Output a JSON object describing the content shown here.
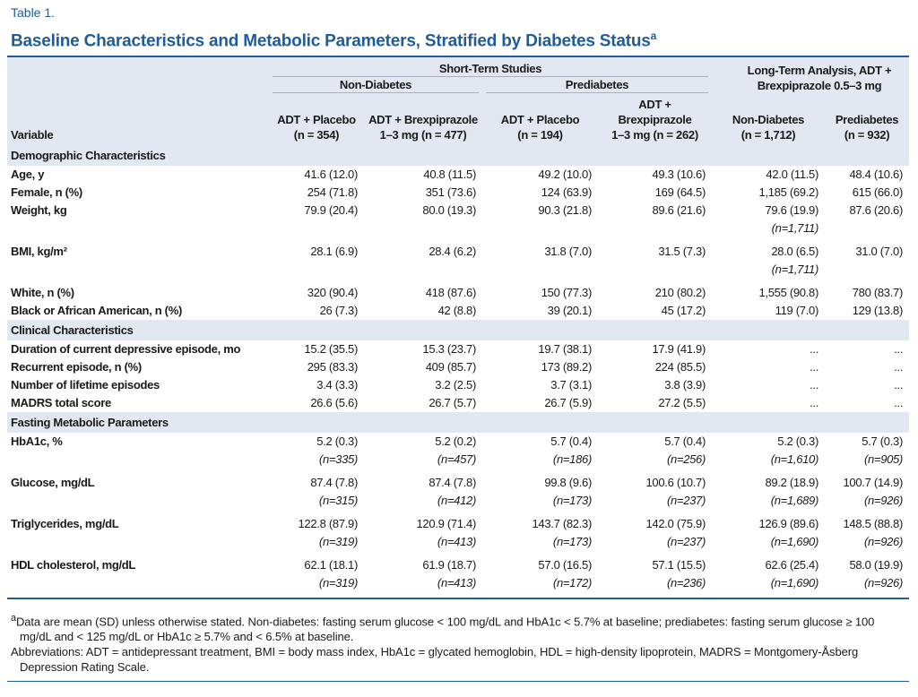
{
  "label": "Table 1.",
  "title": "Baseline Characteristics and Metabolic Parameters, Stratified by Diabetes Status",
  "title_sup": "a",
  "header": {
    "variable": "Variable",
    "short_term": "Short-Term Studies",
    "long_term": "Long-Term Analysis, ADT + Brexpiprazole 0.5–3 mg",
    "non_diabetes": "Non-Diabetes",
    "prediabetes": "Prediabetes",
    "columns": [
      {
        "label": "ADT + Placebo",
        "n": "(n = 354)"
      },
      {
        "label": "ADT + Brexpiprazole",
        "n": "1–3 mg (n = 477)"
      },
      {
        "label": "ADT + Placebo",
        "n": "(n = 194)"
      },
      {
        "label": "ADT + Brexpiprazole",
        "n": "1–3 mg (n = 262)"
      },
      {
        "label": "Non-Diabetes",
        "n": "(n = 1,712)"
      },
      {
        "label": "Prediabetes",
        "n": "(n = 932)"
      }
    ]
  },
  "sections": [
    {
      "title": "Demographic Characteristics",
      "rows": [
        {
          "label": "Age, y",
          "values": [
            "41.6 (12.0)",
            "40.8 (11.5)",
            "49.2 (10.0)",
            "49.3 (10.6)",
            "42.0 (11.5)",
            "48.4 (10.6)"
          ]
        },
        {
          "label": "Female, n (%)",
          "values": [
            "254 (71.8)",
            "351 (73.6)",
            "124 (63.9)",
            "169 (64.5)",
            "1,185 (69.2)",
            "615 (66.0)"
          ]
        },
        {
          "label": "Weight, kg",
          "values": [
            "79.9 (20.4)",
            "80.0 (19.3)",
            "90.3 (21.8)",
            "89.6 (21.6)",
            {
              "text": "79.6 (19.9)",
              "note": "(n=1,711)"
            },
            "87.6 (20.6)"
          ]
        },
        {
          "label": "BMI, kg/m²",
          "values": [
            "28.1 (6.9)",
            "28.4 (6.2)",
            "31.8 (7.0)",
            "31.5 (7.3)",
            {
              "text": "28.0 (6.5)",
              "note": "(n=1,711)"
            },
            "31.0 (7.0)"
          ]
        },
        {
          "label": "White, n (%)",
          "values": [
            "320 (90.4)",
            "418 (87.6)",
            "150 (77.3)",
            "210 (80.2)",
            "1,555 (90.8)",
            "780 (83.7)"
          ]
        },
        {
          "label": "Black or African American, n (%)",
          "values": [
            "26 (7.3)",
            "42 (8.8)",
            "39 (20.1)",
            "45 (17.2)",
            "119 (7.0)",
            "129 (13.8)"
          ]
        }
      ]
    },
    {
      "title": "Clinical Characteristics",
      "rows": [
        {
          "label": "Duration of current depressive episode, mo",
          "values": [
            "15.2 (35.5)",
            "15.3 (23.7)",
            "19.7 (38.1)",
            "17.9 (41.9)",
            "...",
            "..."
          ]
        },
        {
          "label": "Recurrent episode, n (%)",
          "values": [
            "295 (83.3)",
            "409 (85.7)",
            "173 (89.2)",
            "224 (85.5)",
            "...",
            "..."
          ]
        },
        {
          "label": "Number of lifetime episodes",
          "values": [
            "3.4 (3.3)",
            "3.2 (2.5)",
            "3.7 (3.1)",
            "3.8 (3.9)",
            "...",
            "..."
          ]
        },
        {
          "label": "MADRS total score",
          "values": [
            "26.6 (5.6)",
            "26.7 (5.7)",
            "26.7 (5.9)",
            "27.2 (5.5)",
            "...",
            "..."
          ]
        }
      ]
    },
    {
      "title": "Fasting Metabolic Parameters",
      "rows": [
        {
          "label": "HbA1c, %",
          "values": [
            {
              "text": "5.2 (0.3)",
              "note": "(n=335)"
            },
            {
              "text": "5.2 (0.2)",
              "note": "(n=457)"
            },
            {
              "text": "5.7 (0.4)",
              "note": "(n=186)"
            },
            {
              "text": "5.7 (0.4)",
              "note": "(n=256)"
            },
            {
              "text": "5.2 (0.3)",
              "note": "(n=1,610)"
            },
            {
              "text": "5.7 (0.3)",
              "note": "(n=905)"
            }
          ]
        },
        {
          "label": "Glucose, mg/dL",
          "values": [
            {
              "text": "87.4 (7.8)",
              "note": "(n=315)"
            },
            {
              "text": "87.4 (7.8)",
              "note": "(n=412)"
            },
            {
              "text": "99.8 (9.6)",
              "note": "(n=173)"
            },
            {
              "text": "100.6 (10.7)",
              "note": "(n=237)"
            },
            {
              "text": "89.2 (18.9)",
              "note": "(n=1,689)"
            },
            {
              "text": "100.7 (14.9)",
              "note": "(n=926)"
            }
          ]
        },
        {
          "label": "Triglycerides, mg/dL",
          "values": [
            {
              "text": "122.8 (87.9)",
              "note": "(n=319)"
            },
            {
              "text": "120.9 (71.4)",
              "note": "(n=413)"
            },
            {
              "text": "143.7 (82.3)",
              "note": "(n=173)"
            },
            {
              "text": "142.0 (75.9)",
              "note": "(n=237)"
            },
            {
              "text": "126.9 (89.6)",
              "note": "(n=1,690)"
            },
            {
              "text": "148.5 (88.8)",
              "note": "(n=926)"
            }
          ]
        },
        {
          "label": "HDL cholesterol, mg/dL",
          "values": [
            {
              "text": "62.1 (18.1)",
              "note": "(n=319)"
            },
            {
              "text": "61.9 (18.7)",
              "note": "(n=413)"
            },
            {
              "text": "57.0 (16.5)",
              "note": "(n=172)"
            },
            {
              "text": "57.1 (15.5)",
              "note": "(n=236)"
            },
            {
              "text": "62.6 (25.4)",
              "note": "(n=1,690)"
            },
            {
              "text": "58.0 (19.9)",
              "note": "(n=926)"
            }
          ]
        }
      ]
    }
  ],
  "footnotes": {
    "marker": "a",
    "definition": "Data are mean (SD) unless otherwise stated. Non-diabetes: fasting serum glucose < 100 mg/dL and HbA1c < 5.7% at baseline; prediabetes: fasting serum glucose ≥ 100 mg/dL and < 125 mg/dL or HbA1c ≥ 5.7% and < 6.5% at baseline.",
    "abbreviations": "Abbreviations: ADT = antidepressant treatment, BMI = body mass index, HbA1c = glycated hemoglobin, HDL = high-density lipoprotein, MADRS = Montgomery-Åsberg Depression Rating Scale."
  }
}
